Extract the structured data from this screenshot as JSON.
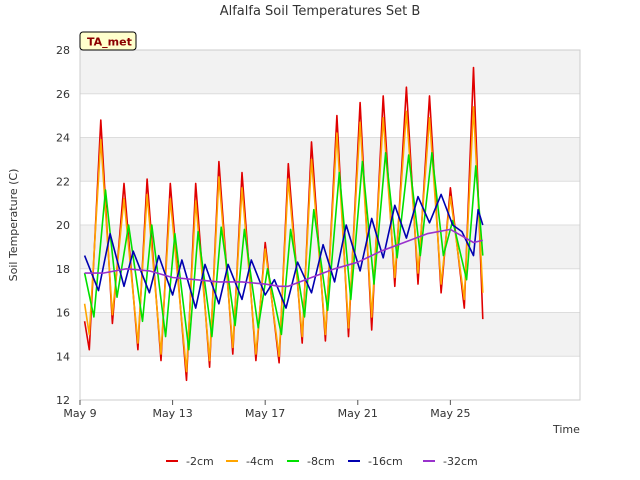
{
  "chart_data": {
    "type": "line",
    "title": "Alfalfa Soil Temperatures Set B",
    "xlabel": "Time",
    "ylabel": "Soil Temperature (C)",
    "annotation": "TA_met",
    "xlim": [
      0,
      21.6
    ],
    "ylim": [
      12,
      28
    ],
    "y_ticks": [
      12,
      14,
      16,
      18,
      20,
      22,
      24,
      26,
      28
    ],
    "x_ticks": [
      {
        "pos": 0,
        "label": "May 9"
      },
      {
        "pos": 4,
        "label": "May 13"
      },
      {
        "pos": 8,
        "label": "May 17"
      },
      {
        "pos": 12,
        "label": "May 21"
      },
      {
        "pos": 16,
        "label": "May 25"
      }
    ],
    "grid": "horizontal bands",
    "legend_position": "bottom",
    "series": [
      {
        "name": "-2cm",
        "color": "#e00000",
        "points": [
          [
            0.2,
            15.6
          ],
          [
            0.4,
            14.3
          ],
          [
            0.9,
            24.8
          ],
          [
            1.4,
            15.5
          ],
          [
            1.9,
            21.9
          ],
          [
            2.5,
            14.3
          ],
          [
            2.9,
            22.1
          ],
          [
            3.5,
            13.8
          ],
          [
            3.9,
            21.9
          ],
          [
            4.6,
            12.9
          ],
          [
            5.0,
            21.9
          ],
          [
            5.6,
            13.5
          ],
          [
            6.0,
            22.9
          ],
          [
            6.6,
            14.1
          ],
          [
            7.0,
            22.4
          ],
          [
            7.6,
            13.8
          ],
          [
            8.0,
            19.2
          ],
          [
            8.6,
            13.7
          ],
          [
            9.0,
            22.8
          ],
          [
            9.6,
            14.6
          ],
          [
            10.0,
            23.8
          ],
          [
            10.6,
            14.7
          ],
          [
            11.1,
            25.0
          ],
          [
            11.6,
            14.9
          ],
          [
            12.1,
            25.6
          ],
          [
            12.6,
            15.2
          ],
          [
            13.1,
            25.9
          ],
          [
            13.6,
            17.2
          ],
          [
            14.1,
            26.3
          ],
          [
            14.6,
            17.3
          ],
          [
            15.1,
            25.9
          ],
          [
            15.6,
            16.9
          ],
          [
            16.0,
            21.7
          ],
          [
            16.6,
            16.2
          ],
          [
            17.0,
            27.2
          ],
          [
            17.4,
            15.7
          ]
        ]
      },
      {
        "name": "-4cm",
        "color": "#ffa500",
        "points": [
          [
            0.2,
            16.4
          ],
          [
            0.4,
            15.0
          ],
          [
            0.9,
            23.9
          ],
          [
            1.4,
            15.9
          ],
          [
            1.9,
            21.2
          ],
          [
            2.5,
            14.6
          ],
          [
            2.9,
            21.4
          ],
          [
            3.5,
            14.1
          ],
          [
            3.9,
            21.2
          ],
          [
            4.6,
            13.3
          ],
          [
            5.0,
            21.1
          ],
          [
            5.6,
            13.8
          ],
          [
            6.0,
            22.2
          ],
          [
            6.6,
            14.4
          ],
          [
            7.0,
            21.7
          ],
          [
            7.6,
            14.1
          ],
          [
            8.0,
            18.9
          ],
          [
            8.6,
            14.0
          ],
          [
            9.0,
            22.1
          ],
          [
            9.6,
            14.9
          ],
          [
            10.0,
            23.0
          ],
          [
            10.6,
            15.0
          ],
          [
            11.1,
            24.2
          ],
          [
            11.6,
            15.3
          ],
          [
            12.1,
            24.7
          ],
          [
            12.6,
            15.8
          ],
          [
            13.1,
            24.9
          ],
          [
            13.6,
            17.6
          ],
          [
            14.1,
            25.2
          ],
          [
            14.6,
            17.8
          ],
          [
            15.1,
            24.9
          ],
          [
            15.6,
            17.3
          ],
          [
            16.0,
            21.3
          ],
          [
            16.6,
            16.6
          ],
          [
            17.0,
            25.4
          ],
          [
            17.4,
            16.9
          ]
        ]
      },
      {
        "name": "-8cm",
        "color": "#00e000",
        "points": [
          [
            0.2,
            17.8
          ],
          [
            0.6,
            15.8
          ],
          [
            1.1,
            21.6
          ],
          [
            1.6,
            16.7
          ],
          [
            2.1,
            20.0
          ],
          [
            2.7,
            15.6
          ],
          [
            3.1,
            20.0
          ],
          [
            3.7,
            14.9
          ],
          [
            4.1,
            19.6
          ],
          [
            4.7,
            14.3
          ],
          [
            5.1,
            19.7
          ],
          [
            5.7,
            14.9
          ],
          [
            6.1,
            19.9
          ],
          [
            6.7,
            15.4
          ],
          [
            7.1,
            19.8
          ],
          [
            7.7,
            15.3
          ],
          [
            8.1,
            18.0
          ],
          [
            8.7,
            15.0
          ],
          [
            9.1,
            19.8
          ],
          [
            9.7,
            15.8
          ],
          [
            10.1,
            20.7
          ],
          [
            10.7,
            16.1
          ],
          [
            11.2,
            22.4
          ],
          [
            11.7,
            16.6
          ],
          [
            12.2,
            22.9
          ],
          [
            12.7,
            17.3
          ],
          [
            13.2,
            23.3
          ],
          [
            13.7,
            18.5
          ],
          [
            14.2,
            23.2
          ],
          [
            14.7,
            18.6
          ],
          [
            15.2,
            23.3
          ],
          [
            15.7,
            18.6
          ],
          [
            16.1,
            20.2
          ],
          [
            16.7,
            17.5
          ],
          [
            17.1,
            22.7
          ],
          [
            17.4,
            18.6
          ]
        ]
      },
      {
        "name": "-16cm",
        "color": "#0000b0",
        "points": [
          [
            0.2,
            18.6
          ],
          [
            0.8,
            17.0
          ],
          [
            1.3,
            19.6
          ],
          [
            1.9,
            17.2
          ],
          [
            2.3,
            18.8
          ],
          [
            3.0,
            16.9
          ],
          [
            3.4,
            18.6
          ],
          [
            4.0,
            16.8
          ],
          [
            4.4,
            18.4
          ],
          [
            5.0,
            16.2
          ],
          [
            5.4,
            18.2
          ],
          [
            6.0,
            16.4
          ],
          [
            6.4,
            18.2
          ],
          [
            7.0,
            16.6
          ],
          [
            7.4,
            18.4
          ],
          [
            8.0,
            16.8
          ],
          [
            8.4,
            17.5
          ],
          [
            8.9,
            16.2
          ],
          [
            9.4,
            18.3
          ],
          [
            10.0,
            16.9
          ],
          [
            10.5,
            19.1
          ],
          [
            11.0,
            17.4
          ],
          [
            11.5,
            20.0
          ],
          [
            12.1,
            17.9
          ],
          [
            12.6,
            20.3
          ],
          [
            13.1,
            18.5
          ],
          [
            13.6,
            20.9
          ],
          [
            14.1,
            19.4
          ],
          [
            14.6,
            21.3
          ],
          [
            15.1,
            20.1
          ],
          [
            15.6,
            21.4
          ],
          [
            16.1,
            20.0
          ],
          [
            16.5,
            19.7
          ],
          [
            17.0,
            18.6
          ],
          [
            17.2,
            20.7
          ],
          [
            17.4,
            20.0
          ]
        ]
      },
      {
        "name": "-32cm",
        "color": "#9932cc",
        "points": [
          [
            0.2,
            17.8
          ],
          [
            1.0,
            17.8
          ],
          [
            2.0,
            18.0
          ],
          [
            3.0,
            17.9
          ],
          [
            4.0,
            17.6
          ],
          [
            5.0,
            17.5
          ],
          [
            6.0,
            17.4
          ],
          [
            7.0,
            17.4
          ],
          [
            8.0,
            17.3
          ],
          [
            8.6,
            17.2
          ],
          [
            9.0,
            17.2
          ],
          [
            10.0,
            17.6
          ],
          [
            11.0,
            18.0
          ],
          [
            12.0,
            18.3
          ],
          [
            13.0,
            18.8
          ],
          [
            14.0,
            19.2
          ],
          [
            15.0,
            19.6
          ],
          [
            16.0,
            19.8
          ],
          [
            16.5,
            19.5
          ],
          [
            17.0,
            19.2
          ],
          [
            17.4,
            19.3
          ]
        ]
      }
    ]
  }
}
